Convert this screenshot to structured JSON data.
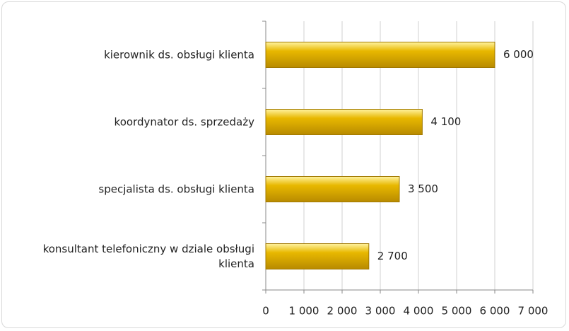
{
  "chart_data": {
    "type": "hbar",
    "categories": [
      "kierownik ds. obsługi klienta",
      "koordynator ds. sprzedaży",
      "specjalista ds. obsługi klienta",
      "konsultant telefoniczny w dziale obsługi klienta"
    ],
    "values": [
      6000,
      4100,
      3500,
      2700
    ],
    "value_labels": [
      "6 000",
      "4 100",
      "3 500",
      "2 700"
    ],
    "color": "#e8b800",
    "xlim": [
      0,
      7000
    ],
    "xticks": [
      0,
      {
        "value": 1000,
        "label": "1 000"
      },
      {
        "value": 2000,
        "label": "2 000"
      },
      {
        "value": 3000,
        "label": "3 000"
      },
      {
        "value": 4000,
        "label": "4 000"
      },
      {
        "value": 5000,
        "label": "5 000"
      },
      {
        "value": 6000,
        "label": "6 000"
      },
      {
        "value": 7000,
        "label": "7 000"
      }
    ],
    "grid": true
  }
}
